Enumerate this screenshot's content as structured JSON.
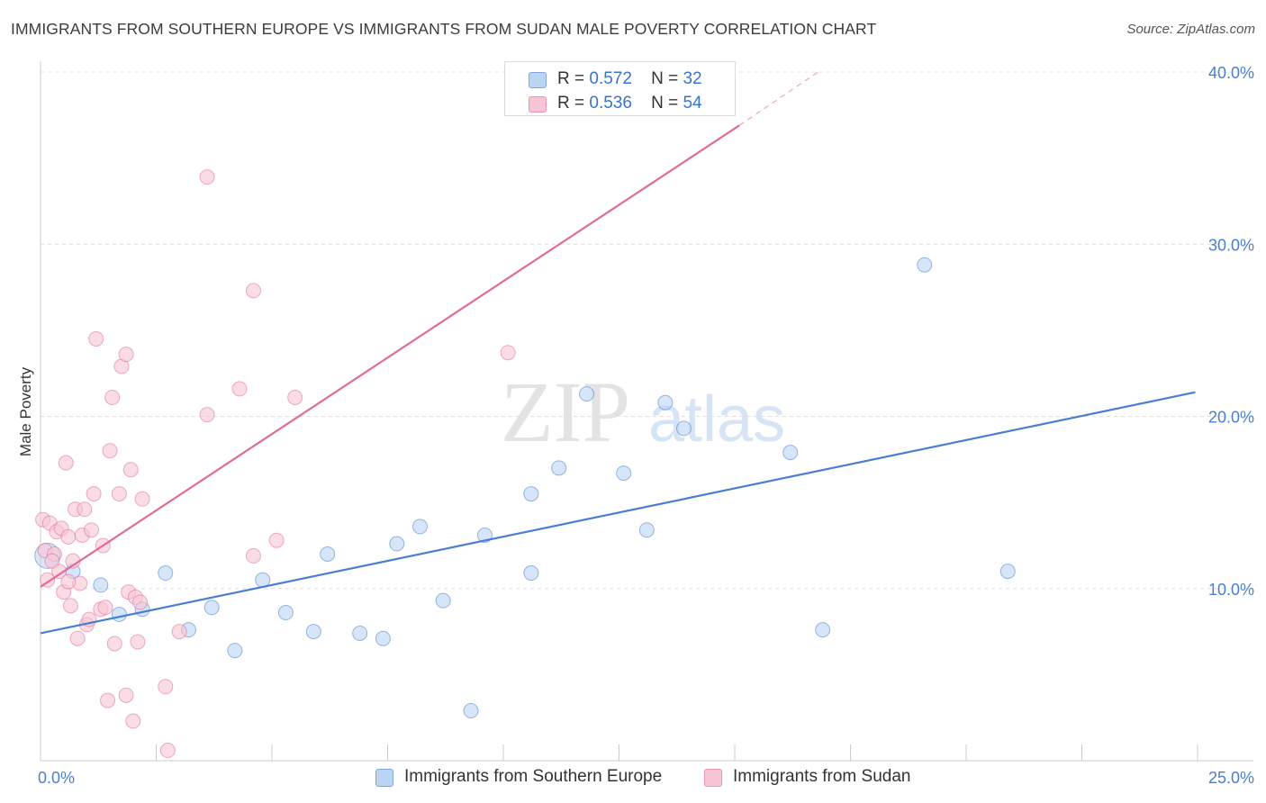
{
  "header": {
    "title": "IMMIGRANTS FROM SOUTHERN EUROPE VS IMMIGRANTS FROM SUDAN MALE POVERTY CORRELATION CHART",
    "source": "Source: ZipAtlas.com"
  },
  "watermark": {
    "zip": "ZIP",
    "atlas": "atlas"
  },
  "legend": {
    "rows": [
      {
        "r_label": "R =",
        "r_value": "0.572",
        "n_label": "N =",
        "n_value": "32",
        "color": "#a9c8f0"
      },
      {
        "r_label": "R =",
        "r_value": "0.536",
        "n_label": "N =",
        "n_value": "54",
        "color": "#f5b8cb"
      }
    ]
  },
  "bottom_legend": {
    "items": [
      {
        "label": "Immigrants from Southern Europe",
        "color": "#a9c8f0"
      },
      {
        "label": "Immigrants from Sudan",
        "color": "#f5b8cb"
      }
    ]
  },
  "chart_data": {
    "type": "scatter",
    "title": "IMMIGRANTS FROM SOUTHERN EUROPE VS IMMIGRANTS FROM SUDAN MALE POVERTY CORRELATION CHART",
    "xlabel": "",
    "ylabel": "Male Poverty",
    "xlim": [
      0,
      25
    ],
    "ylim": [
      0,
      40
    ],
    "x_tick_labels": [
      {
        "value": 0,
        "label": "0.0%"
      },
      {
        "value": 25,
        "label": "25.0%"
      }
    ],
    "y_tick_labels": [
      {
        "value": 10,
        "label": "10.0%"
      },
      {
        "value": 20,
        "label": "20.0%"
      },
      {
        "value": 30,
        "label": "30.0%"
      },
      {
        "value": 40,
        "label": "40.0%"
      }
    ],
    "grid": true,
    "series": [
      {
        "name": "Immigrants from Southern Europe",
        "color": "#4a7fd0",
        "fill": "#bcd4f3",
        "trend": {
          "x": [
            0,
            24.95
          ],
          "y": [
            7.4,
            21.4
          ]
        },
        "points": [
          [
            0.15,
            11.9
          ],
          [
            1.3,
            10.2
          ],
          [
            1.7,
            8.5
          ],
          [
            2.2,
            8.8
          ],
          [
            2.7,
            10.9
          ],
          [
            3.2,
            7.6
          ],
          [
            3.7,
            8.9
          ],
          [
            4.2,
            6.4
          ],
          [
            4.8,
            10.5
          ],
          [
            5.3,
            8.6
          ],
          [
            5.9,
            7.5
          ],
          [
            6.2,
            12.0
          ],
          [
            6.9,
            7.4
          ],
          [
            7.4,
            7.1
          ],
          [
            7.7,
            12.6
          ],
          [
            8.2,
            13.6
          ],
          [
            8.7,
            9.3
          ],
          [
            9.3,
            2.9
          ],
          [
            9.6,
            13.1
          ],
          [
            10.6,
            15.5
          ],
          [
            10.6,
            10.9
          ],
          [
            11.2,
            17.0
          ],
          [
            11.8,
            21.3
          ],
          [
            12.6,
            16.7
          ],
          [
            13.1,
            13.4
          ],
          [
            13.5,
            20.8
          ],
          [
            13.9,
            19.3
          ],
          [
            16.2,
            17.9
          ],
          [
            16.9,
            7.6
          ],
          [
            19.1,
            28.8
          ],
          [
            20.9,
            11.0
          ],
          [
            0.7,
            11.0
          ]
        ]
      },
      {
        "name": "Immigrants from Sudan",
        "color": "#e06c95",
        "fill": "#f7c5d4",
        "trend": {
          "x": [
            0,
            15.1
          ],
          "y": [
            10.1,
            36.9
          ]
        },
        "trend_dashed": {
          "x": [
            15.1,
            16.8
          ],
          "y": [
            36.9,
            40.0
          ]
        },
        "points": [
          [
            0.05,
            14.0
          ],
          [
            0.1,
            12.2
          ],
          [
            0.15,
            10.5
          ],
          [
            0.2,
            13.8
          ],
          [
            0.3,
            12.0
          ],
          [
            0.35,
            13.3
          ],
          [
            0.4,
            11.0
          ],
          [
            0.45,
            13.5
          ],
          [
            0.5,
            9.8
          ],
          [
            0.55,
            17.3
          ],
          [
            0.6,
            13.0
          ],
          [
            0.65,
            9.0
          ],
          [
            0.7,
            11.6
          ],
          [
            0.75,
            14.6
          ],
          [
            0.8,
            7.1
          ],
          [
            0.85,
            10.3
          ],
          [
            0.9,
            13.1
          ],
          [
            0.95,
            14.6
          ],
          [
            1.0,
            7.9
          ],
          [
            1.05,
            8.2
          ],
          [
            1.1,
            13.4
          ],
          [
            1.15,
            15.5
          ],
          [
            1.2,
            24.5
          ],
          [
            1.3,
            8.8
          ],
          [
            1.35,
            12.5
          ],
          [
            1.4,
            8.9
          ],
          [
            1.45,
            3.5
          ],
          [
            1.5,
            18.0
          ],
          [
            1.55,
            21.1
          ],
          [
            1.6,
            6.8
          ],
          [
            1.7,
            15.5
          ],
          [
            1.75,
            22.9
          ],
          [
            1.85,
            3.8
          ],
          [
            1.85,
            23.6
          ],
          [
            1.9,
            9.8
          ],
          [
            1.95,
            16.9
          ],
          [
            2.0,
            2.3
          ],
          [
            2.05,
            9.5
          ],
          [
            2.1,
            6.9
          ],
          [
            2.15,
            9.2
          ],
          [
            2.2,
            15.2
          ],
          [
            2.7,
            4.3
          ],
          [
            2.75,
            0.6
          ],
          [
            3.0,
            7.5
          ],
          [
            3.6,
            20.1
          ],
          [
            3.6,
            33.9
          ],
          [
            4.3,
            21.6
          ],
          [
            4.6,
            27.3
          ],
          [
            4.6,
            11.9
          ],
          [
            5.1,
            12.8
          ],
          [
            5.5,
            21.1
          ],
          [
            10.1,
            23.7
          ],
          [
            0.25,
            11.6
          ],
          [
            0.6,
            10.4
          ]
        ]
      }
    ]
  }
}
